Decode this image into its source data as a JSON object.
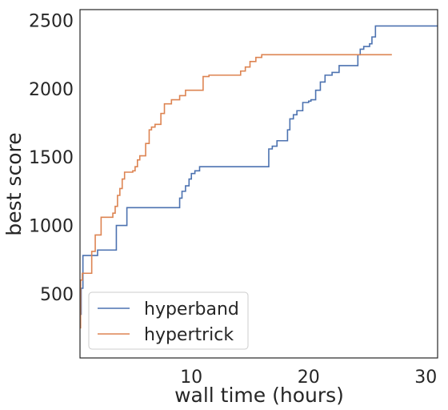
{
  "chart_data": {
    "type": "line",
    "title": "",
    "xlabel": "wall time (hours)",
    "ylabel": "best score",
    "xlim": [
      0.5,
      31
    ],
    "ylim": [
      30,
      2580
    ],
    "xticks": [
      10,
      20,
      30
    ],
    "yticks": [
      500,
      1000,
      1500,
      2000,
      2500
    ],
    "grid": false,
    "legend_position": "lower-left",
    "series": [
      {
        "name": "hyperband",
        "color": "#4c72b0",
        "step": true,
        "x": [
          0.5,
          0.6,
          0.75,
          1.0,
          1.5,
          2.0,
          2.5,
          3.0,
          3.2,
          3.4,
          3.6,
          4.2,
          4.5,
          5.0,
          5.8,
          6.2,
          8.0,
          9.0,
          9.2,
          9.5,
          9.8,
          10.0,
          10.3,
          10.7,
          11.2,
          12.0,
          14.0,
          16.0,
          16.6,
          16.9,
          17.3,
          17.6,
          18.2,
          18.4,
          18.7,
          19.0,
          19.5,
          20.0,
          20.2,
          20.6,
          21.0,
          21.4,
          22.0,
          22.6,
          23.4,
          24.2,
          24.4,
          24.7,
          25.2,
          25.4,
          25.7,
          27.0,
          31.0
        ],
        "y": [
          350,
          540,
          780,
          780,
          780,
          820,
          820,
          820,
          820,
          820,
          1000,
          1000,
          1130,
          1130,
          1130,
          1130,
          1130,
          1200,
          1250,
          1290,
          1340,
          1380,
          1400,
          1430,
          1430,
          1430,
          1430,
          1430,
          1560,
          1580,
          1620,
          1620,
          1700,
          1780,
          1810,
          1840,
          1900,
          1910,
          1920,
          1990,
          2050,
          2100,
          2120,
          2170,
          2170,
          2250,
          2290,
          2310,
          2330,
          2380,
          2460,
          2460,
          2460
        ]
      },
      {
        "name": "hypertrick",
        "color": "#dd8452",
        "step": true,
        "x": [
          0.5,
          0.55,
          0.7,
          0.8,
          1.0,
          1.5,
          1.8,
          2.3,
          2.8,
          3.3,
          3.5,
          3.7,
          3.9,
          4.1,
          4.3,
          4.5,
          5.0,
          5.2,
          5.4,
          5.6,
          6.1,
          6.4,
          6.6,
          6.9,
          7.4,
          7.7,
          8.0,
          8.3,
          9.0,
          9.5,
          9.9,
          10.5,
          11.0,
          11.5,
          12.0,
          14.0,
          14.2,
          14.6,
          15.0,
          15.5,
          16.0,
          20.0,
          25.0,
          27.1
        ],
        "y": [
          250,
          600,
          650,
          650,
          650,
          810,
          930,
          1060,
          1060,
          1090,
          1140,
          1220,
          1270,
          1340,
          1390,
          1390,
          1400,
          1430,
          1480,
          1510,
          1600,
          1700,
          1720,
          1740,
          1820,
          1890,
          1890,
          1920,
          1950,
          1990,
          1990,
          1990,
          2090,
          2100,
          2100,
          2100,
          2130,
          2160,
          2200,
          2230,
          2250,
          2250,
          2250,
          2250
        ]
      }
    ]
  }
}
